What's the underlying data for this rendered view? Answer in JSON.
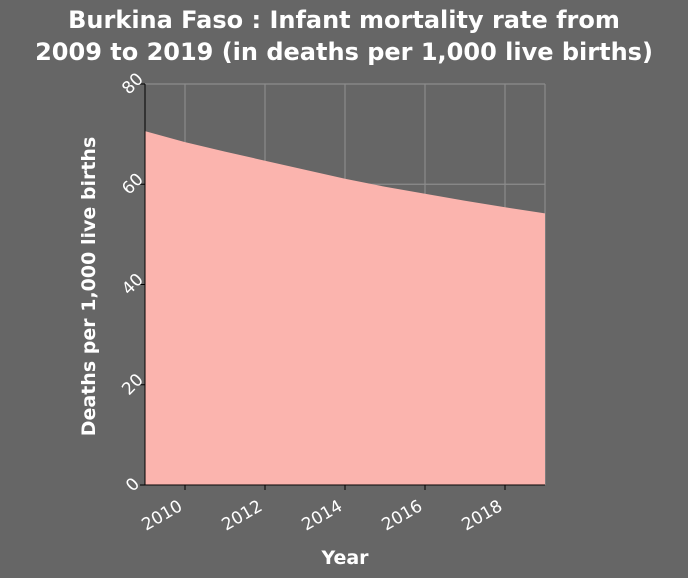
{
  "colors": {
    "background": "#666666",
    "plot_background": "#666666",
    "grid": "#8c8c8c",
    "area_fill": "#fbb4ae",
    "text": "#ffffff"
  },
  "chart_data": {
    "type": "area",
    "title_lines": [
      "Burkina Faso : Infant mortality rate from",
      "2009 to 2019 (in deaths per 1,000 live births)"
    ],
    "xlabel": "Year",
    "ylabel": "Deaths per 1,000 live births",
    "xlim": [
      2009,
      2019
    ],
    "ylim": [
      0,
      80
    ],
    "x_ticks": [
      2010,
      2012,
      2014,
      2016,
      2018
    ],
    "y_ticks": [
      0,
      20,
      40,
      60,
      80
    ],
    "grid": true,
    "legend": "none",
    "series": [
      {
        "x": [
          2009,
          2010,
          2011,
          2012,
          2013,
          2014,
          2015,
          2016,
          2017,
          2018,
          2019
        ],
        "y": [
          70.6,
          68.4,
          66.5,
          64.7,
          62.9,
          61.1,
          59.5,
          58.1,
          56.7,
          55.4,
          54.2
        ]
      }
    ]
  }
}
